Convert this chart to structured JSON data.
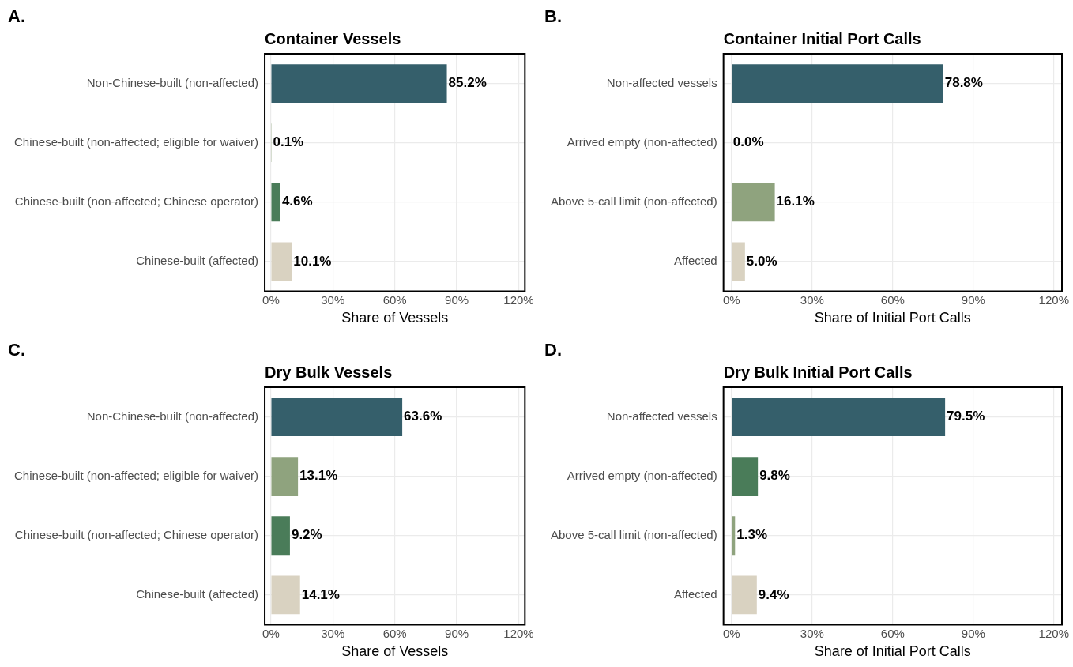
{
  "chart_data": [
    {
      "type": "bar",
      "orientation": "horizontal",
      "title": "Container Vessels",
      "xlabel": "Share of Vessels",
      "annotations": [
        "A."
      ],
      "categories": [
        "Non-Chinese-built (non-affected)",
        "Chinese-built (non-affected; eligible for waiver)",
        "Chinese-built (non-affected; Chinese operator)",
        "Chinese-built (affected)"
      ],
      "values": [
        85.2,
        0.1,
        4.6,
        10.1
      ],
      "value_labels": [
        "85.2%",
        "0.1%",
        "4.6%",
        "10.1%"
      ],
      "colors": [
        "#355f6b",
        "#8fa37e",
        "#4a7c59",
        "#d9d2c1"
      ],
      "xlim": [
        -3,
        123
      ],
      "xticks": [
        {
          "value": 0,
          "label": "0%"
        },
        {
          "value": 30,
          "label": "30%"
        },
        {
          "value": 60,
          "label": "60%"
        },
        {
          "value": 90,
          "label": "90%"
        },
        {
          "value": 120,
          "label": "120%"
        }
      ],
      "grid": true,
      "legend": false
    },
    {
      "type": "bar",
      "orientation": "horizontal",
      "title": "Container Initial Port Calls",
      "xlabel": "Share of Initial Port Calls",
      "annotations": [
        "B."
      ],
      "categories": [
        "Non-affected vessels",
        "Arrived empty (non-affected)",
        "Above 5-call limit (non-affected)",
        "Affected"
      ],
      "values": [
        78.8,
        0.0,
        16.1,
        5.0
      ],
      "value_labels": [
        "78.8%",
        "0.0%",
        "16.1%",
        "5.0%"
      ],
      "colors": [
        "#355f6b",
        "#4a7c59",
        "#8fa37e",
        "#d9d2c1"
      ],
      "xlim": [
        -3,
        123
      ],
      "xticks": [
        {
          "value": 0,
          "label": "0%"
        },
        {
          "value": 30,
          "label": "30%"
        },
        {
          "value": 60,
          "label": "60%"
        },
        {
          "value": 90,
          "label": "90%"
        },
        {
          "value": 120,
          "label": "120%"
        }
      ],
      "grid": true,
      "legend": false
    },
    {
      "type": "bar",
      "orientation": "horizontal",
      "title": "Dry Bulk Vessels",
      "xlabel": "Share of Vessels",
      "annotations": [
        "C."
      ],
      "categories": [
        "Non-Chinese-built (non-affected)",
        "Chinese-built (non-affected; eligible for waiver)",
        "Chinese-built (non-affected; Chinese operator)",
        "Chinese-built (affected)"
      ],
      "values": [
        63.6,
        13.1,
        9.2,
        14.1
      ],
      "value_labels": [
        "63.6%",
        "13.1%",
        "9.2%",
        "14.1%"
      ],
      "colors": [
        "#355f6b",
        "#8fa37e",
        "#4a7c59",
        "#d9d2c1"
      ],
      "xlim": [
        -3,
        123
      ],
      "xticks": [
        {
          "value": 0,
          "label": "0%"
        },
        {
          "value": 30,
          "label": "30%"
        },
        {
          "value": 60,
          "label": "60%"
        },
        {
          "value": 90,
          "label": "90%"
        },
        {
          "value": 120,
          "label": "120%"
        }
      ],
      "grid": true,
      "legend": false
    },
    {
      "type": "bar",
      "orientation": "horizontal",
      "title": "Dry Bulk Initial Port Calls",
      "xlabel": "Share of Initial Port Calls",
      "annotations": [
        "D."
      ],
      "categories": [
        "Non-affected vessels",
        "Arrived empty (non-affected)",
        "Above 5-call limit (non-affected)",
        "Affected"
      ],
      "values": [
        79.5,
        9.8,
        1.3,
        9.4
      ],
      "value_labels": [
        "79.5%",
        "9.8%",
        "1.3%",
        "9.4%"
      ],
      "colors": [
        "#355f6b",
        "#4a7c59",
        "#8fa37e",
        "#d9d2c1"
      ],
      "xlim": [
        -3,
        123
      ],
      "xticks": [
        {
          "value": 0,
          "label": "0%"
        },
        {
          "value": 30,
          "label": "30%"
        },
        {
          "value": 60,
          "label": "60%"
        },
        {
          "value": 90,
          "label": "90%"
        },
        {
          "value": 120,
          "label": "120%"
        }
      ],
      "grid": true,
      "legend": false
    }
  ]
}
